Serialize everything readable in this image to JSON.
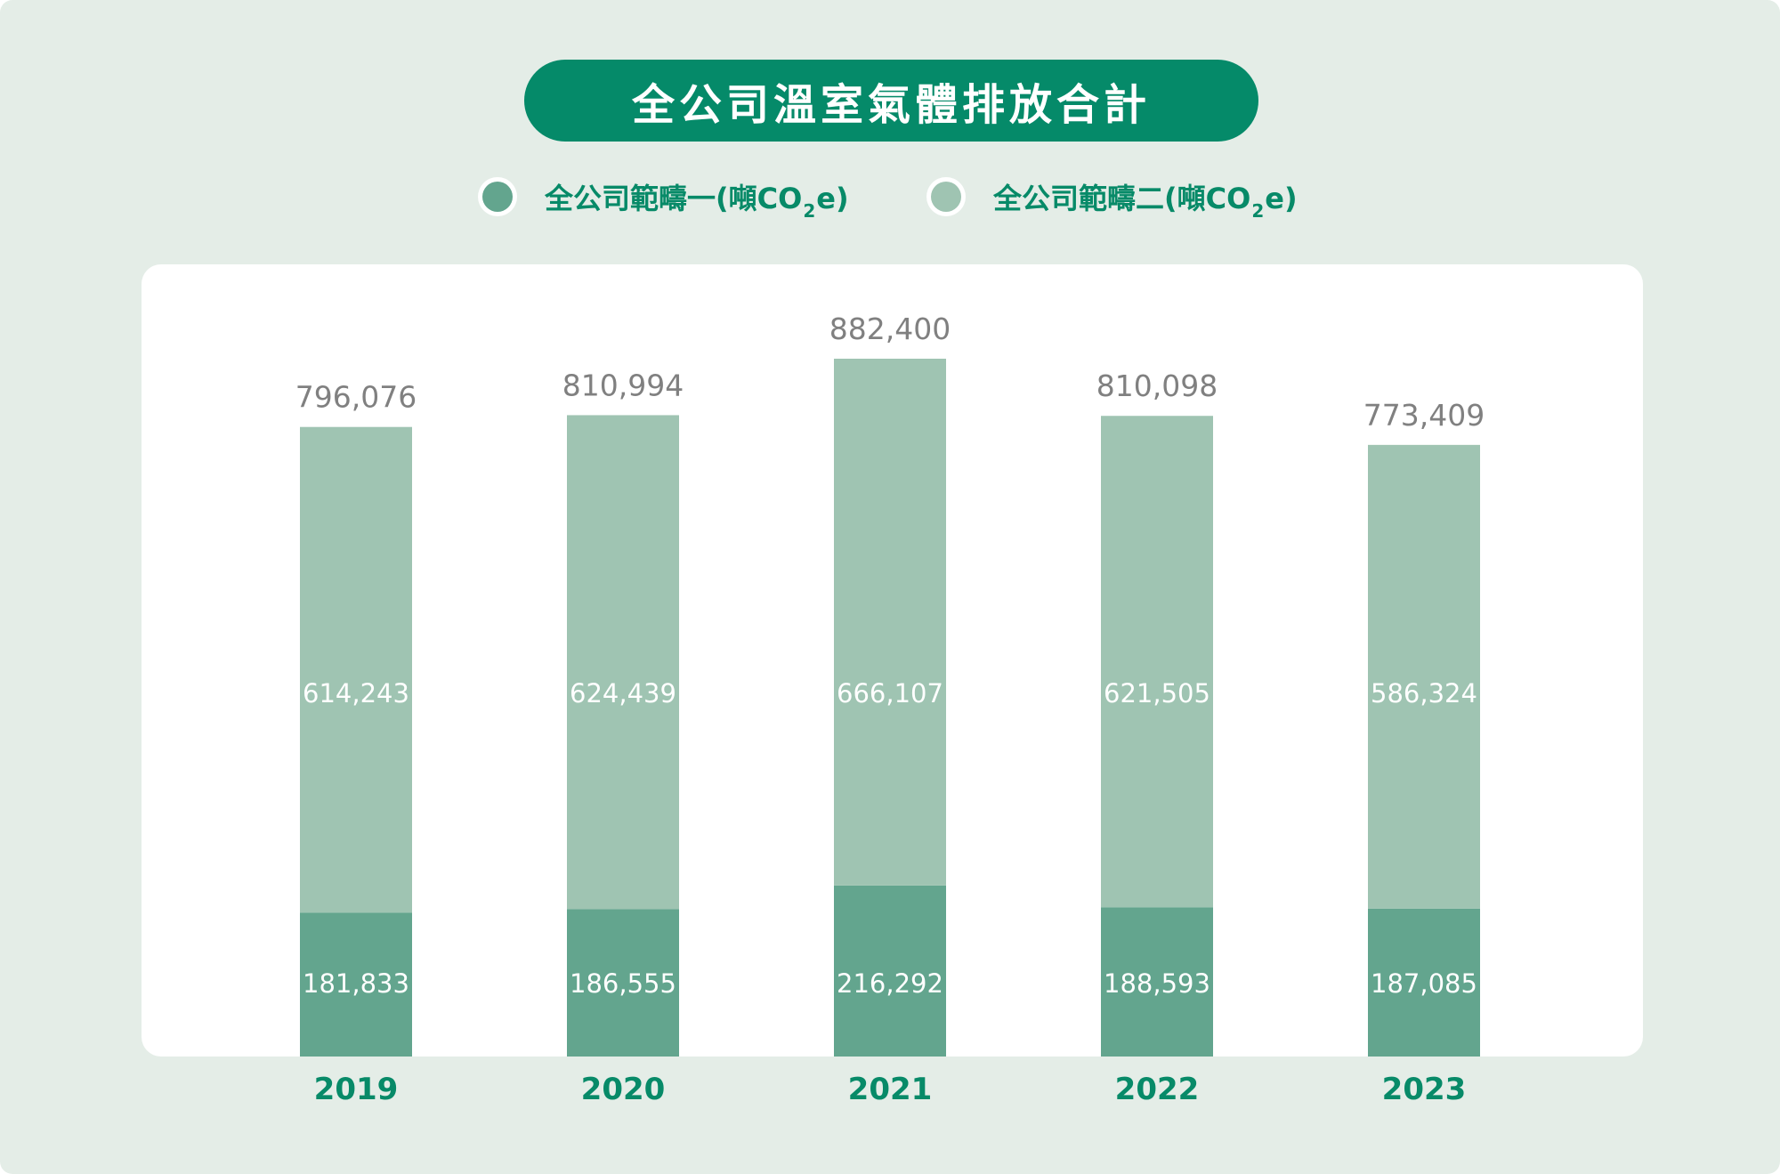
{
  "title": "全公司溫室氣體排放合計",
  "legend": {
    "scope1_text": "全公司範疇一(噸CO",
    "scope2_text": "全公司範疇二(噸CO",
    "sub": "2",
    "suffix": "e)"
  },
  "colors": {
    "background": "#e4ede7",
    "title_pill": "#058a69",
    "scope1": "#63a58e",
    "scope2": "#9fc4b2",
    "total_label": "#808080",
    "year_label": "#078a68"
  },
  "chart_data": {
    "type": "bar",
    "stacked": true,
    "title": "全公司溫室氣體排放合計",
    "categories": [
      "2019",
      "2020",
      "2021",
      "2022",
      "2023"
    ],
    "series": [
      {
        "name": "全公司範疇一(噸CO2e)",
        "values": [
          181833,
          186555,
          216292,
          188593,
          187085
        ],
        "labels": [
          "181,833",
          "186,555",
          "216,292",
          "188,593",
          "187,085"
        ]
      },
      {
        "name": "全公司範疇二(噸CO2e)",
        "values": [
          614243,
          624439,
          666107,
          621505,
          586324
        ],
        "labels": [
          "614,243",
          "624,439",
          "666,107",
          "621,505",
          "586,324"
        ]
      }
    ],
    "totals": [
      796076,
      810994,
      882400,
      810098,
      773409
    ],
    "total_labels": [
      "796,076",
      "810,994",
      "882,400",
      "810,098",
      "773,409"
    ],
    "ylim": [
      0,
      882400
    ],
    "grid": false,
    "legend_position": "top"
  }
}
